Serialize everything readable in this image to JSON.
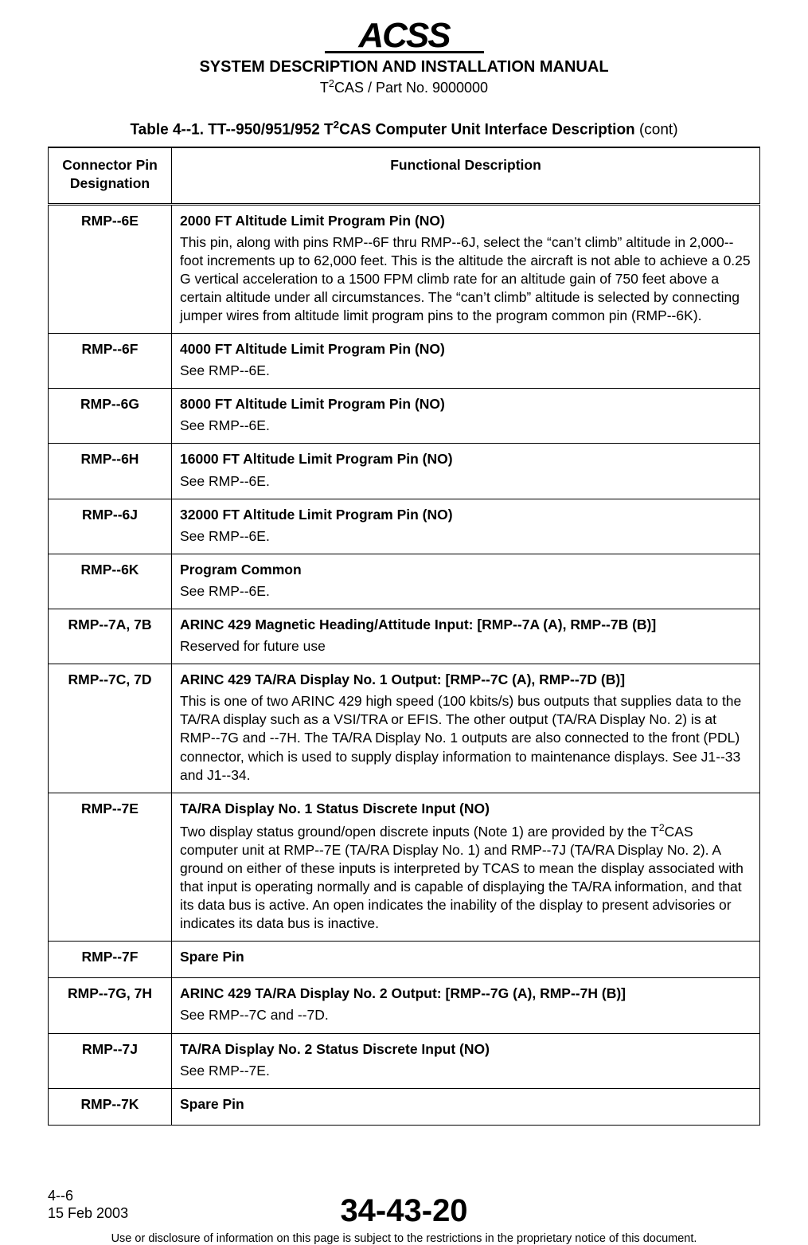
{
  "header": {
    "logo_text": "ACSS",
    "manual_title": "SYSTEM DESCRIPTION AND INSTALLATION MANUAL",
    "part_prefix": "T",
    "part_sup": "2",
    "part_rest": "CAS / Part No. 9000000"
  },
  "caption": {
    "prefix_bold": "Table 4--1.  TT--950/951/952 T",
    "sup": "2",
    "suffix_bold": "CAS Computer Unit Interface Description",
    "cont": " (cont)"
  },
  "columns": {
    "pin": "Connector Pin Designation",
    "desc": "Functional Description"
  },
  "rows": [
    {
      "pin": "RMP--6E",
      "title": "2000 FT Altitude Limit Program Pin (NO)",
      "body": "This pin, along with pins RMP--6F thru RMP--6J, select the “can’t climb” altitude in 2,000--foot increments up to 62,000 feet.  This is the altitude the aircraft is not able to achieve a 0.25 G vertical acceleration to a 1500 FPM climb rate for an altitude gain of 750 feet above a certain altitude under all circumstances.  The “can’t climb” altitude is selected by connecting jumper wires from altitude limit program pins to the program common pin (RMP--6K)."
    },
    {
      "pin": "RMP--6F",
      "title": "4000 FT Altitude Limit Program Pin (NO)",
      "body": "See RMP--6E."
    },
    {
      "pin": "RMP--6G",
      "title": "8000 FT Altitude Limit Program Pin (NO)",
      "body": "See RMP--6E."
    },
    {
      "pin": "RMP--6H",
      "title": "16000 FT Altitude Limit Program Pin (NO)",
      "body": "See RMP--6E."
    },
    {
      "pin": "RMP--6J",
      "title": "32000 FT Altitude Limit Program Pin (NO)",
      "body": "See RMP--6E."
    },
    {
      "pin": "RMP--6K",
      "title": "Program Common",
      "body": "See RMP--6E."
    },
    {
      "pin": "RMP--7A, 7B",
      "title": "ARINC 429 Magnetic Heading/Attitude Input:  [RMP--7A (A), RMP--7B (B)]",
      "body": "Reserved for future use"
    },
    {
      "pin": "RMP--7C, 7D",
      "title": "ARINC 429 TA/RA Display No. 1 Output:  [RMP--7C (A), RMP--7D (B)]",
      "body": "This is one of two ARINC 429 high speed (100 kbits/s) bus outputs that supplies data to the TA/RA display such as a VSI/TRA or EFIS.  The other output (TA/RA Display No. 2) is at RMP--7G and --7H.  The TA/RA Display No. 1 outputs are also connected to the front (PDL) connector, which is used to supply display information to maintenance displays.  See J1--33 and J1--34."
    },
    {
      "pin": "RMP--7E",
      "title": "TA/RA Display No. 1 Status Discrete Input (NO)",
      "body_pre": "Two display status ground/open discrete inputs (Note 1) are provided by the T",
      "body_sup": "2",
      "body_post": "CAS computer unit at RMP--7E (TA/RA Display No. 1) and RMP--7J (TA/RA Display No. 2).  A ground on either of these inputs is interpreted by TCAS to mean the display associated with that input is operating normally and is capable of displaying the TA/RA information, and that its data bus is active.  An open indicates the inability of the display to present advisories or indicates its data bus is inactive."
    },
    {
      "pin": "RMP--7F",
      "title": "Spare Pin",
      "body": ""
    },
    {
      "pin": "RMP--7G, 7H",
      "title": "ARINC 429 TA/RA Display No. 2 Output:  [RMP--7G (A), RMP--7H (B)]",
      "body": "See RMP--7C and --7D."
    },
    {
      "pin": "RMP--7J",
      "title": "TA/RA Display No. 2 Status Discrete Input (NO)",
      "body": "See RMP--7E."
    },
    {
      "pin": "RMP--7K",
      "title": "Spare Pin",
      "body": ""
    }
  ],
  "footer": {
    "page": "4--6",
    "date": "15 Feb 2003",
    "section": "34-43-20",
    "disclaimer": "Use or disclosure of information on this page is subject to the restrictions in the proprietary notice of this document."
  }
}
